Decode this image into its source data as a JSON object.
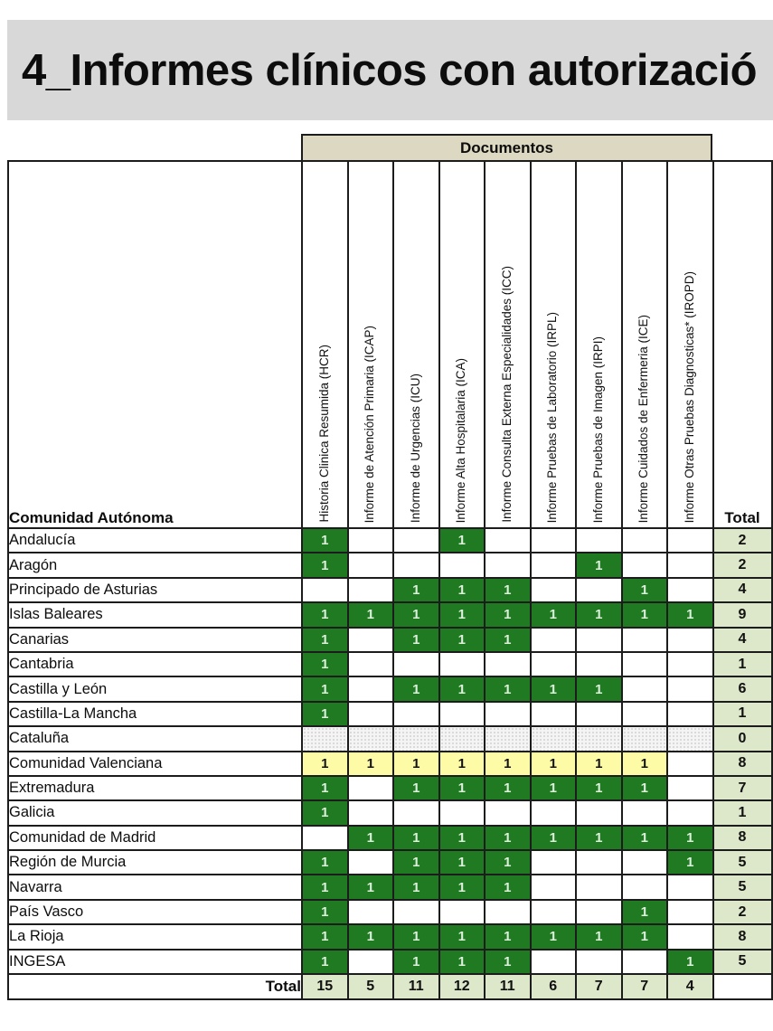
{
  "page": {
    "title": "4_Informes clínicos con autorizació"
  },
  "colors": {
    "title_band_bg": "#d8d8d8",
    "group_header_bg": "#ddd8c1",
    "green_cell_bg": "#1f7a22",
    "green_cell_text": "#dcefdb",
    "yellow_cell_bg": "#fdfba6",
    "total_cell_bg": "#dde7ca",
    "hatched_cell_bg": "#f4f4f4",
    "border": "#1c1c1c"
  },
  "table": {
    "group_header": "Documentos",
    "corner_header": "Comunidad Autónoma",
    "total_column_header": "Total",
    "total_row_label": "Total",
    "document_columns": [
      "Historia Clinica Resumida (HCR)",
      "Informe de Atención Primaria (ICAP)",
      "Informe de Urgencias (ICU)",
      "Informe Alta Hospitalaria (ICA)",
      "Informe Consulta Externa Especialidades (ICC)",
      "Informe Pruebas de Laboratorio (IRPL)",
      "Informe Pruebas de Imagen (IRPI)",
      "Informe  Cuidados de Enfermeria (ICE)",
      "Informe Otras Pruebas Diagnosticas* (IROPD)"
    ],
    "rows": [
      {
        "name": "Andalucía",
        "style": "normal",
        "values": [
          1,
          "",
          "",
          1,
          "",
          "",
          "",
          "",
          ""
        ],
        "total": 2
      },
      {
        "name": "Aragón",
        "style": "normal",
        "values": [
          1,
          "",
          "",
          "",
          "",
          "",
          1,
          "",
          ""
        ],
        "total": 2
      },
      {
        "name": "Principado de Asturias",
        "style": "normal",
        "values": [
          "",
          "",
          1,
          1,
          1,
          "",
          "",
          1,
          ""
        ],
        "total": 4
      },
      {
        "name": "Islas Baleares",
        "style": "normal",
        "values": [
          1,
          1,
          1,
          1,
          1,
          1,
          1,
          1,
          1
        ],
        "total": 9
      },
      {
        "name": "Canarias",
        "style": "normal",
        "values": [
          1,
          "",
          1,
          1,
          1,
          "",
          "",
          "",
          ""
        ],
        "total": 4
      },
      {
        "name": "Cantabria",
        "style": "normal",
        "values": [
          1,
          "",
          "",
          "",
          "",
          "",
          "",
          "",
          ""
        ],
        "total": 1
      },
      {
        "name": "Castilla y León",
        "style": "normal",
        "values": [
          1,
          "",
          1,
          1,
          1,
          1,
          1,
          "",
          ""
        ],
        "total": 6
      },
      {
        "name": "Castilla-La Mancha",
        "style": "normal",
        "values": [
          1,
          "",
          "",
          "",
          "",
          "",
          "",
          "",
          ""
        ],
        "total": 1
      },
      {
        "name": "Cataluña",
        "style": "hatch",
        "values": [
          "",
          "",
          "",
          "",
          "",
          "",
          "",
          "",
          ""
        ],
        "total": 0
      },
      {
        "name": "Comunidad Valenciana",
        "style": "yellow",
        "values": [
          1,
          1,
          1,
          1,
          1,
          1,
          1,
          1,
          ""
        ],
        "total": 8
      },
      {
        "name": "Extremadura",
        "style": "normal",
        "values": [
          1,
          "",
          1,
          1,
          1,
          1,
          1,
          1,
          ""
        ],
        "total": 7
      },
      {
        "name": "Galicia",
        "style": "normal",
        "values": [
          1,
          "",
          "",
          "",
          "",
          "",
          "",
          "",
          ""
        ],
        "total": 1
      },
      {
        "name": "Comunidad de Madrid",
        "style": "normal",
        "values": [
          "",
          1,
          1,
          1,
          1,
          1,
          1,
          1,
          1
        ],
        "total": 8
      },
      {
        "name": "Región de Murcia",
        "style": "normal",
        "values": [
          1,
          "",
          1,
          1,
          1,
          "",
          "",
          "",
          1
        ],
        "total": 5
      },
      {
        "name": "Navarra",
        "style": "normal",
        "values": [
          1,
          1,
          1,
          1,
          1,
          "",
          "",
          "",
          ""
        ],
        "total": 5
      },
      {
        "name": "País Vasco",
        "style": "normal",
        "values": [
          1,
          "",
          "",
          "",
          "",
          "",
          "",
          1,
          ""
        ],
        "total": 2
      },
      {
        "name": "La Rioja",
        "style": "normal",
        "values": [
          1,
          1,
          1,
          1,
          1,
          1,
          1,
          1,
          ""
        ],
        "total": 8
      },
      {
        "name": "INGESA",
        "style": "normal",
        "values": [
          1,
          "",
          1,
          1,
          1,
          "",
          "",
          "",
          1
        ],
        "total": 5
      }
    ],
    "column_totals": [
      15,
      5,
      11,
      12,
      11,
      6,
      7,
      7,
      4
    ]
  }
}
